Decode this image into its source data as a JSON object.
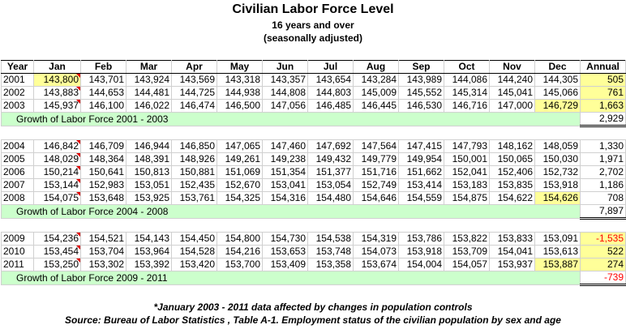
{
  "header": {
    "title": "Civilian Labor Force Level",
    "subtitle": [
      "16 years and over",
      "(seasonally adjusted)"
    ]
  },
  "table": {
    "columns": [
      "Year",
      "Jan",
      "Feb",
      "Mar",
      "Apr",
      "May",
      "Jun",
      "Jul",
      "Aug",
      "Sep",
      "Oct",
      "Nov",
      "Dec",
      "Annual"
    ],
    "sections": [
      {
        "rows": [
          [
            "2001",
            "143,800",
            "143,701",
            "143,924",
            "143,569",
            "143,318",
            "143,357",
            "143,654",
            "143,284",
            "143,989",
            "144,086",
            "144,240",
            "144,305",
            "505"
          ],
          [
            "2002",
            "143,883",
            "144,653",
            "144,481",
            "144,725",
            "144,938",
            "144,808",
            "144,803",
            "145,009",
            "145,552",
            "145,314",
            "145,041",
            "145,066",
            "761"
          ],
          [
            "2003",
            "145,937",
            "146,100",
            "146,022",
            "146,474",
            "146,500",
            "147,056",
            "146,485",
            "146,445",
            "146,530",
            "146,716",
            "147,000",
            "146,729",
            "1,663"
          ]
        ],
        "growth": {
          "label": "Growth of Labor Force 2001 - 2003",
          "value": "2,929"
        }
      },
      {
        "rows": [
          [
            "2004",
            "146,842",
            "146,709",
            "146,944",
            "146,850",
            "147,065",
            "147,460",
            "147,692",
            "147,564",
            "147,415",
            "147,793",
            "148,162",
            "148,059",
            "1,330"
          ],
          [
            "2005",
            "148,029",
            "148,364",
            "148,391",
            "148,926",
            "149,261",
            "149,238",
            "149,432",
            "149,779",
            "149,954",
            "150,001",
            "150,065",
            "150,030",
            "1,971"
          ],
          [
            "2006",
            "150,214",
            "150,641",
            "150,813",
            "150,881",
            "151,069",
            "151,354",
            "151,377",
            "151,716",
            "151,662",
            "152,041",
            "152,406",
            "152,732",
            "2,702"
          ],
          [
            "2007",
            "153,144",
            "152,983",
            "153,051",
            "152,435",
            "152,670",
            "153,041",
            "153,054",
            "152,749",
            "153,414",
            "153,183",
            "153,835",
            "153,918",
            "1,186"
          ],
          [
            "2008",
            "154,075",
            "153,648",
            "153,925",
            "153,761",
            "154,325",
            "154,316",
            "154,480",
            "154,646",
            "154,559",
            "154,875",
            "154,622",
            "154,626",
            "708"
          ]
        ],
        "growth": {
          "label": "Growth of Labor Force 2004 - 2008",
          "value": "7,897"
        }
      },
      {
        "rows": [
          [
            "2009",
            "154,236",
            "154,521",
            "154,143",
            "154,450",
            "154,800",
            "154,730",
            "154,538",
            "154,319",
            "153,786",
            "153,822",
            "153,833",
            "153,091",
            "-1,535"
          ],
          [
            "2010",
            "153,454",
            "153,704",
            "153,964",
            "154,528",
            "154,216",
            "153,653",
            "153,748",
            "154,073",
            "153,918",
            "153,709",
            "154,041",
            "153,613",
            "522"
          ],
          [
            "2011",
            "153,250",
            "153,302",
            "153,392",
            "153,420",
            "153,700",
            "153,409",
            "153,358",
            "153,674",
            "154,004",
            "154,057",
            "153,937",
            "153,887",
            "274"
          ]
        ],
        "growth": {
          "label": "Growth of Labor Force 2009 - 2011",
          "value": "-739"
        }
      }
    ]
  },
  "footer": [
    "*January 2003 - 2011 data affected by changes in population controls",
    "Source: Bureau of Labor Statistics , Table A-1. Employment status of the civilian population by sex and age"
  ]
}
